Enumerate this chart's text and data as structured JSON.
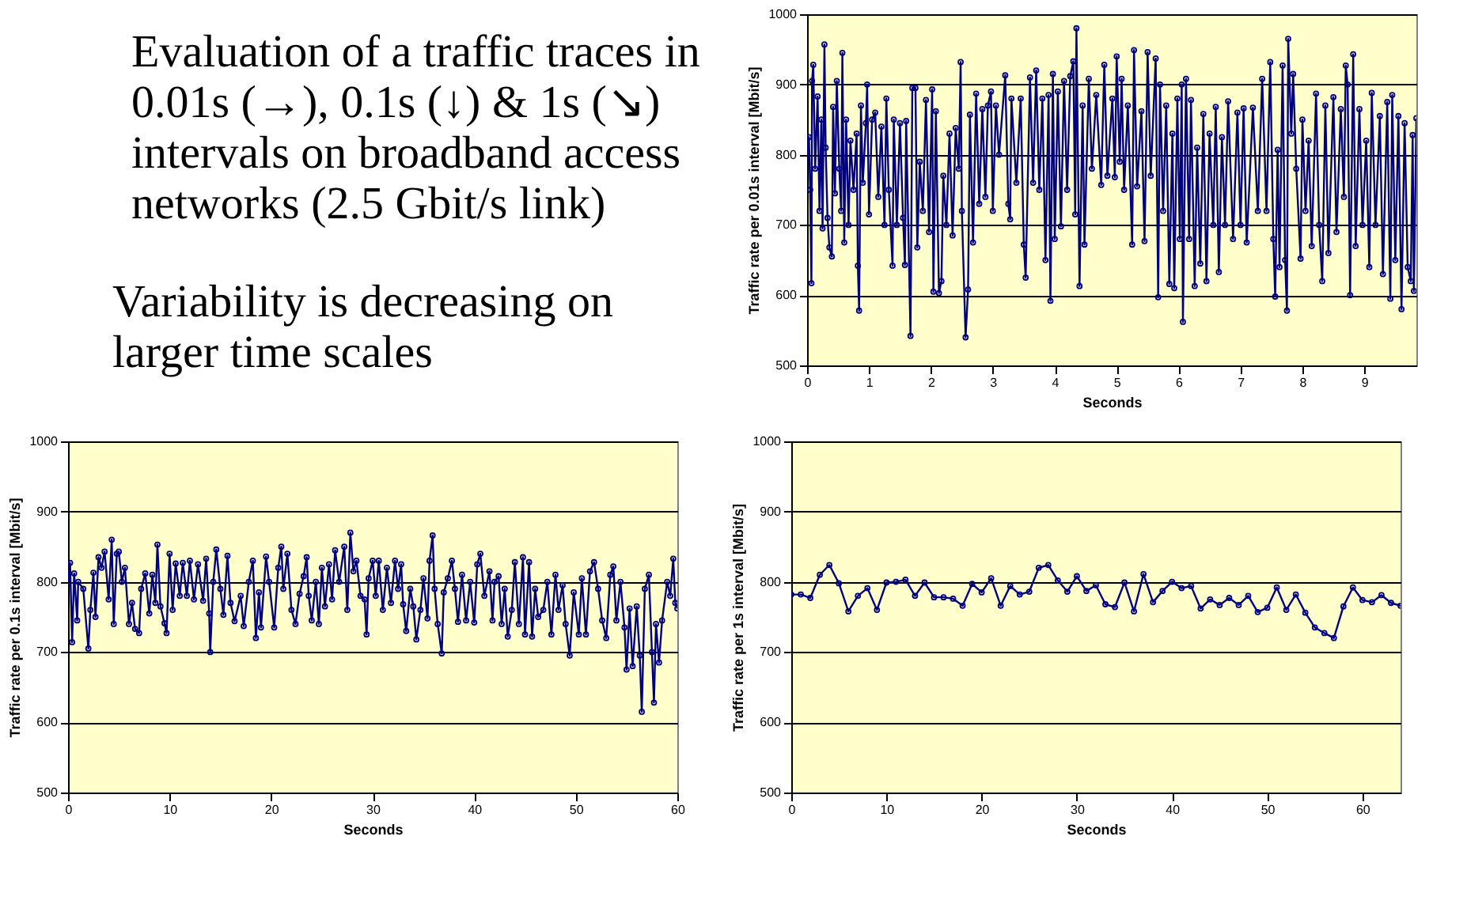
{
  "chart_data": [
    {
      "type": "other",
      "annotations": [
        "Evaluation of a traffic traces in\n0.01s (→), 0.1s (↓) & 1s (↘)\nintervals on broadband access\nnetworks (2.5 Gbit/s link)",
        "Variability is decreasing on\nlarger time scales"
      ]
    },
    {
      "type": "line",
      "xlabel": "Seconds",
      "ylabel": "Traffic rate per 0.01s interval [Mbit/s]",
      "xlim": [
        0,
        9.84
      ],
      "xticks": [
        0,
        1,
        2,
        3,
        4,
        5,
        6,
        7,
        8,
        9
      ],
      "ylim": [
        500,
        1000
      ],
      "yticks": [
        500,
        600,
        700,
        800,
        900,
        1000
      ],
      "grid": "y",
      "marker": "circle",
      "series": [
        {
          "color": "#000080",
          "x": [
            0,
            0.03,
            0.05,
            0.07,
            0.08,
            0.1,
            0.13,
            0.17,
            0.2,
            0.23,
            0.25,
            0.28,
            0.3,
            0.33,
            0.36,
            0.4,
            0.42,
            0.45,
            0.48,
            0.52,
            0.55,
            0.57,
            0.6,
            0.63,
            0.67,
            0.7,
            0.75,
            0.8,
            0.82,
            0.84,
            0.87,
            0.9,
            0.95,
            0.97,
            1.0,
            1.05,
            1.1,
            1.15,
            1.2,
            1.25,
            1.28,
            1.32,
            1.38,
            1.4,
            1.45,
            1.5,
            1.55,
            1.58,
            1.6,
            1.67,
            1.7,
            1.75,
            1.78,
            1.82,
            1.87,
            1.92,
            1.97,
            2.02,
            2.04,
            2.08,
            2.13,
            2.17,
            2.2,
            2.25,
            2.3,
            2.35,
            2.4,
            2.45,
            2.48,
            2.5,
            2.56,
            2.6,
            2.63,
            2.68,
            2.73,
            2.78,
            2.83,
            2.88,
            2.92,
            2.97,
            3.0,
            3.05,
            3.1,
            3.2,
            3.25,
            3.28,
            3.3,
            3.38,
            3.45,
            3.5,
            3.53,
            3.6,
            3.65,
            3.7,
            3.75,
            3.8,
            3.85,
            3.9,
            3.93,
            3.97,
            4.0,
            4.05,
            4.1,
            4.15,
            4.2,
            4.25,
            4.3,
            4.33,
            4.35,
            4.4,
            4.45,
            4.48,
            4.55,
            4.6,
            4.67,
            4.75,
            4.8,
            4.85,
            4.93,
            4.97,
            5.0,
            5.05,
            5.08,
            5.12,
            5.18,
            5.25,
            5.28,
            5.33,
            5.4,
            5.45,
            5.5,
            5.55,
            5.63,
            5.67,
            5.7,
            5.75,
            5.8,
            5.85,
            5.9,
            5.93,
            5.98,
            6.02,
            6.05,
            6.07,
            6.12,
            6.17,
            6.2,
            6.26,
            6.3,
            6.35,
            6.4,
            6.45,
            6.5,
            6.56,
            6.6,
            6.65,
            6.7,
            6.75,
            6.8,
            6.88,
            6.95,
            7.0,
            7.05,
            7.1,
            7.2,
            7.28,
            7.35,
            7.42,
            7.48,
            7.53,
            7.56,
            7.6,
            7.63,
            7.68,
            7.72,
            7.75,
            7.77,
            7.82,
            7.85,
            7.9,
            7.97,
            8.0,
            8.05,
            8.1,
            8.15,
            8.22,
            8.27,
            8.32,
            8.37,
            8.42,
            8.5,
            8.55,
            8.62,
            8.67,
            8.7,
            8.73,
            8.77,
            8.82,
            8.86,
            8.92,
            8.97,
            9.03,
            9.08,
            9.12,
            9.18,
            9.25,
            9.3,
            9.37,
            9.42,
            9.45,
            9.5,
            9.55,
            9.6,
            9.65,
            9.7,
            9.75,
            9.78,
            9.8,
            9.84
          ],
          "values": [
            800,
            825,
            750,
            617,
            905,
            928,
            780,
            883,
            720,
            850,
            695,
            957,
            810,
            710,
            668,
            655,
            868,
            745,
            905,
            780,
            720,
            945,
            675,
            850,
            700,
            820,
            750,
            830,
            642,
            578,
            870,
            760,
            845,
            900,
            715,
            850,
            860,
            740,
            840,
            700,
            880,
            750,
            642,
            850,
            700,
            845,
            710,
            643,
            848,
            542,
            895,
            895,
            668,
            790,
            720,
            878,
            690,
            893,
            605,
            862,
            603,
            620,
            770,
            700,
            830,
            685,
            838,
            780,
            932,
            720,
            540,
            608,
            857,
            675,
            887,
            730,
            865,
            740,
            870,
            890,
            720,
            870,
            800,
            913,
            730,
            708,
            880,
            760,
            880,
            672,
            625,
            910,
            760,
            920,
            750,
            880,
            650,
            885,
            592,
            915,
            680,
            890,
            698,
            905,
            750,
            912,
            933,
            715,
            980,
            613,
            870,
            672,
            908,
            780,
            885,
            757,
            928,
            770,
            880,
            768,
            940,
            790,
            908,
            750,
            870,
            672,
            949,
            755,
            862,
            677,
            946,
            770,
            937,
            597,
            900,
            720,
            870,
            616,
            830,
            610,
            880,
            680,
            900,
            562,
            908,
            680,
            878,
            613,
            810,
            645,
            858,
            620,
            830,
            700,
            868,
            633,
            825,
            700,
            876,
            680,
            860,
            700,
            866,
            675,
            867,
            720,
            908,
            720,
            932,
            680,
            598,
            807,
            640,
            927,
            650,
            578,
            965,
            830,
            915,
            780,
            652,
            850,
            720,
            820,
            670,
            887,
            700,
            620,
            870,
            660,
            882,
            690,
            865,
            740,
            927,
            900,
            600,
            943,
            670,
            865,
            700,
            820,
            640,
            888,
            700,
            855,
            630,
            875,
            595,
            885,
            650,
            855,
            580,
            845,
            640,
            620,
            828,
            606,
            852
          ]
        }
      ]
    },
    {
      "type": "line",
      "xlabel": "Seconds",
      "ylabel": "Traffic rate per 0.1s interval [Mbit/s]",
      "xlim": [
        0,
        60
      ],
      "xticks": [
        0,
        10,
        20,
        30,
        40,
        50,
        60
      ],
      "ylim": [
        500,
        1000
      ],
      "yticks": [
        500,
        600,
        700,
        800,
        900,
        1000
      ],
      "grid": "y",
      "marker": "circle",
      "series": [
        {
          "color": "#000080",
          "x": [
            0,
            0.2,
            0.4,
            0.6,
            0.9,
            1,
            1.5,
            2,
            2.2,
            2.5,
            2.7,
            3,
            3.3,
            3.6,
            4,
            4.3,
            4.5,
            4.8,
            5,
            5.3,
            5.6,
            6,
            6.3,
            6.6,
            7,
            7.2,
            7.6,
            8,
            8.3,
            8.6,
            8.8,
            9.1,
            9.5,
            9.7,
            10,
            10.3,
            10.6,
            11,
            11.3,
            11.7,
            12,
            12.4,
            12.8,
            13.3,
            13.6,
            13.9,
            14,
            14.3,
            14.6,
            15,
            15.3,
            15.7,
            16,
            16.4,
            17,
            17.3,
            17.8,
            18.2,
            18.5,
            18.8,
            19,
            19.5,
            19.8,
            20.3,
            20.7,
            21,
            21.2,
            21.6,
            22,
            22.4,
            22.8,
            23.2,
            23.5,
            23.7,
            24,
            24.4,
            24.7,
            25,
            25.3,
            25.7,
            26,
            26.3,
            26.7,
            27.2,
            27.5,
            27.8,
            28.1,
            28.4,
            28.8,
            29.2,
            29.4,
            29.6,
            30,
            30.3,
            30.6,
            31,
            31.4,
            31.8,
            32.2,
            32.5,
            32.8,
            33,
            33.3,
            33.7,
            34,
            34.3,
            34.7,
            35,
            35.4,
            35.6,
            35.9,
            36.1,
            36.4,
            36.8,
            37,
            37.4,
            37.8,
            38.1,
            38.4,
            38.8,
            39.2,
            39.6,
            40,
            40.3,
            40.6,
            41,
            41.5,
            41.8,
            42,
            42.4,
            42.7,
            43,
            43.3,
            43.7,
            44,
            44.4,
            44.8,
            45,
            45.4,
            45.7,
            46,
            46.3,
            46.8,
            47.2,
            47.6,
            48,
            48.3,
            48.7,
            49,
            49.4,
            49.8,
            50.3,
            50.6,
            51,
            51.4,
            51.8,
            52.2,
            52.6,
            53,
            53.4,
            53.7,
            54,
            54.4,
            54.8,
            55,
            55.3,
            55.6,
            56,
            56.3,
            56.5,
            56.8,
            57.2,
            57.5,
            57.7,
            57.9,
            58.2,
            58.5,
            59,
            59.3,
            59.6,
            59.8,
            60
          ],
          "values": [
            800,
            827,
            714,
            812,
            745,
            800,
            790,
            705,
            760,
            813,
            750,
            835,
            820,
            843,
            775,
            860,
            740,
            840,
            843,
            800,
            820,
            740,
            770,
            733,
            727,
            790,
            812,
            755,
            810,
            770,
            853,
            765,
            741,
            727,
            840,
            760,
            826,
            780,
            827,
            780,
            830,
            775,
            825,
            773,
            833,
            755,
            700,
            800,
            846,
            790,
            753,
            837,
            770,
            744,
            780,
            737,
            800,
            830,
            720,
            785,
            735,
            836,
            800,
            735,
            820,
            850,
            790,
            840,
            760,
            740,
            783,
            808,
            835,
            780,
            745,
            800,
            740,
            820,
            765,
            825,
            775,
            845,
            800,
            850,
            760,
            870,
            815,
            830,
            780,
            775,
            725,
            805,
            830,
            780,
            830,
            760,
            820,
            770,
            830,
            790,
            825,
            768,
            730,
            790,
            765,
            718,
            760,
            805,
            748,
            830,
            866,
            790,
            740,
            698,
            785,
            805,
            830,
            790,
            743,
            810,
            745,
            800,
            742,
            825,
            840,
            780,
            815,
            745,
            800,
            808,
            740,
            790,
            722,
            760,
            828,
            740,
            835,
            725,
            828,
            722,
            790,
            750,
            760,
            800,
            725,
            810,
            760,
            795,
            740,
            695,
            785,
            725,
            805,
            725,
            815,
            828,
            790,
            745,
            720,
            810,
            822,
            745,
            800,
            735,
            675,
            762,
            680,
            765,
            695,
            615,
            790,
            810,
            700,
            628,
            740,
            685,
            745,
            800,
            780,
            833,
            770,
            762
          ]
        }
      ]
    },
    {
      "type": "line",
      "xlabel": "Seconds",
      "ylabel": "Traffic rate per 1s interval [Mbit/s]",
      "xlim": [
        0,
        64
      ],
      "xticks": [
        0,
        10,
        20,
        30,
        40,
        50,
        60
      ],
      "ylim": [
        500,
        1000
      ],
      "yticks": [
        500,
        600,
        700,
        800,
        900,
        1000
      ],
      "grid": "y",
      "marker": "circle",
      "series": [
        {
          "color": "#000080",
          "x": [
            0,
            1,
            2,
            3,
            4,
            5,
            6,
            7,
            8,
            9,
            10,
            11,
            12,
            13,
            14,
            15,
            16,
            17,
            18,
            19,
            20,
            21,
            22,
            23,
            24,
            25,
            26,
            27,
            28,
            29,
            30,
            31,
            32,
            33,
            34,
            35,
            36,
            37,
            38,
            39,
            40,
            41,
            42,
            43,
            44,
            45,
            46,
            47,
            48,
            49,
            50,
            51,
            52,
            53,
            54,
            55,
            56,
            57,
            58,
            59,
            60,
            61,
            62,
            63,
            64
          ],
          "values": [
            782,
            782,
            777,
            810,
            824,
            798,
            758,
            780,
            791,
            760,
            799,
            800,
            803,
            780,
            799,
            778,
            778,
            776,
            766,
            797,
            785,
            805,
            766,
            794,
            782,
            786,
            820,
            824,
            802,
            786,
            808,
            787,
            795,
            768,
            764,
            799,
            758,
            811,
            771,
            787,
            800,
            791,
            794,
            762,
            775,
            767,
            777,
            767,
            780,
            757,
            763,
            792,
            760,
            782,
            756,
            735,
            727,
            720,
            765,
            792,
            774,
            771,
            781,
            770,
            766
          ]
        }
      ]
    }
  ]
}
